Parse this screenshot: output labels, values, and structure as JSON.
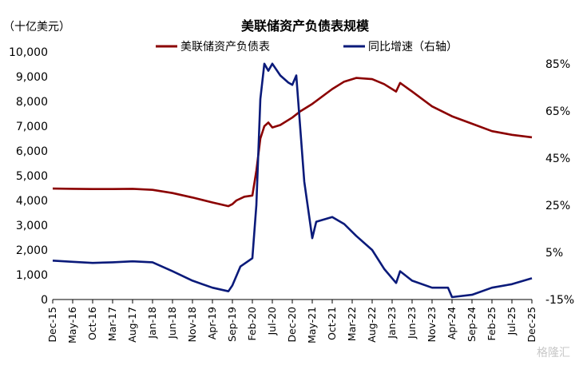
{
  "chart_data": {
    "type": "line",
    "title": "美联储资产负债表规模",
    "unit_label": "（十亿美元）",
    "watermark": "格隆汇",
    "colors": {
      "balance": "#8b0000",
      "growth": "#0a1a7a"
    },
    "left_axis": {
      "ylim": [
        0,
        10000
      ],
      "ticks": [
        "0",
        "1,000",
        "2,000",
        "3,000",
        "4,000",
        "5,000",
        "6,000",
        "7,000",
        "8,000",
        "9,000",
        "10,000"
      ]
    },
    "right_axis": {
      "ylim": [
        -15,
        90
      ],
      "ticks": [
        "-15%",
        "5%",
        "25%",
        "45%",
        "65%",
        "85%"
      ],
      "tick_values": [
        -15,
        5,
        25,
        45,
        65,
        85
      ]
    },
    "x_ticks": [
      "Dec-15",
      "May-16",
      "Oct-16",
      "Mar-17",
      "Aug-17",
      "Jan-18",
      "Jun-18",
      "Nov-18",
      "Apr-19",
      "Sep-19",
      "Feb-20",
      "Jul-20",
      "Dec-20",
      "May-21",
      "Oct-21",
      "Mar-22",
      "Aug-22",
      "Jan-23",
      "Jun-23",
      "Nov-23",
      "Apr-24",
      "Sep-24",
      "Feb-25",
      "Jul-25",
      "Dec-25"
    ],
    "series": [
      {
        "name": "美联储资产负债表",
        "axis": "left",
        "points": [
          [
            "Dec-15",
            4480
          ],
          [
            "May-16",
            4470
          ],
          [
            "Oct-16",
            4460
          ],
          [
            "Mar-17",
            4460
          ],
          [
            "Aug-17",
            4470
          ],
          [
            "Jan-18",
            4430
          ],
          [
            "Jun-18",
            4300
          ],
          [
            "Nov-18",
            4120
          ],
          [
            "Apr-19",
            3920
          ],
          [
            "Aug-19",
            3770
          ],
          [
            "Sep-19",
            3850
          ],
          [
            "Oct-19",
            4000
          ],
          [
            "Dec-19",
            4150
          ],
          [
            "Feb-20",
            4200
          ],
          [
            "Mar-20",
            5200
          ],
          [
            "Apr-20",
            6500
          ],
          [
            "May-20",
            7000
          ],
          [
            "Jun-20",
            7150
          ],
          [
            "Jul-20",
            6950
          ],
          [
            "Sep-20",
            7050
          ],
          [
            "Dec-20",
            7350
          ],
          [
            "Feb-21",
            7600
          ],
          [
            "May-21",
            7900
          ],
          [
            "Oct-21",
            8500
          ],
          [
            "Jan-22",
            8800
          ],
          [
            "Apr-22",
            8950
          ],
          [
            "Aug-22",
            8900
          ],
          [
            "Nov-22",
            8700
          ],
          [
            "Feb-23",
            8400
          ],
          [
            "Mar-23",
            8750
          ],
          [
            "Jun-23",
            8400
          ],
          [
            "Nov-23",
            7800
          ],
          [
            "Apr-24",
            7400
          ],
          [
            "Sep-24",
            7100
          ],
          [
            "Feb-25",
            6800
          ],
          [
            "Jul-25",
            6650
          ],
          [
            "Dec-25",
            6550
          ]
        ]
      },
      {
        "name": "同比增速（右轴）",
        "axis": "right",
        "points": [
          [
            "Dec-15",
            1.5
          ],
          [
            "May-16",
            1.0
          ],
          [
            "Oct-16",
            0.5
          ],
          [
            "Mar-17",
            0.8
          ],
          [
            "Aug-17",
            1.2
          ],
          [
            "Jan-18",
            0.8
          ],
          [
            "Jun-18",
            -3.0
          ],
          [
            "Nov-18",
            -7.0
          ],
          [
            "Apr-19",
            -10.0
          ],
          [
            "Aug-19",
            -11.5
          ],
          [
            "Sep-19",
            -9.0
          ],
          [
            "Nov-19",
            -1.0
          ],
          [
            "Feb-20",
            2.5
          ],
          [
            "Mar-20",
            25.0
          ],
          [
            "Apr-20",
            70.0
          ],
          [
            "May-20",
            85.0
          ],
          [
            "Jun-20",
            82.0
          ],
          [
            "Jul-20",
            85.0
          ],
          [
            "Sep-20",
            80.0
          ],
          [
            "Nov-20",
            77.0
          ],
          [
            "Dec-20",
            76.0
          ],
          [
            "Jan-21",
            80.0
          ],
          [
            "Mar-21",
            35.0
          ],
          [
            "May-21",
            11.0
          ],
          [
            "Jun-21",
            18.0
          ],
          [
            "Oct-21",
            20.0
          ],
          [
            "Jan-22",
            17.0
          ],
          [
            "Apr-22",
            12.0
          ],
          [
            "Aug-22",
            6.0
          ],
          [
            "Nov-22",
            -2.0
          ],
          [
            "Feb-23",
            -8.0
          ],
          [
            "Mar-23",
            -3.0
          ],
          [
            "Jun-23",
            -7.0
          ],
          [
            "Nov-23",
            -10.0
          ],
          [
            "Mar-24",
            -10.0
          ],
          [
            "Apr-24",
            -14.0
          ],
          [
            "Sep-24",
            -13.0
          ],
          [
            "Feb-25",
            -10.0
          ],
          [
            "Jul-25",
            -8.5
          ],
          [
            "Dec-25",
            -6.0
          ]
        ]
      }
    ]
  }
}
